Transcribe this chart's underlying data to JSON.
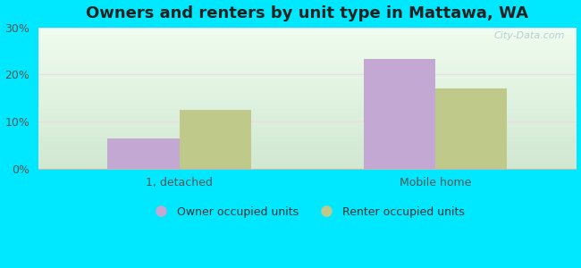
{
  "title": "Owners and renters by unit type in Mattawa, WA",
  "categories": [
    "1, detached",
    "Mobile home"
  ],
  "owner_values": [
    6.3,
    23.3
  ],
  "renter_values": [
    12.5,
    17.0
  ],
  "owner_color": "#c4a8d4",
  "renter_color": "#bec98a",
  "owner_label": "Owner occupied units",
  "renter_label": "Renter occupied units",
  "ylim": [
    0,
    30
  ],
  "yticks": [
    0,
    10,
    20,
    30
  ],
  "ytick_labels": [
    "0%",
    "10%",
    "20%",
    "30%"
  ],
  "background_outer": "#00e8ff",
  "watermark": "City-Data.com",
  "bar_width": 0.28,
  "title_fontsize": 13,
  "grid_color": "#e0ece0",
  "bg_top": "#eaf7f0",
  "bg_bottom": "#d0e8d0"
}
